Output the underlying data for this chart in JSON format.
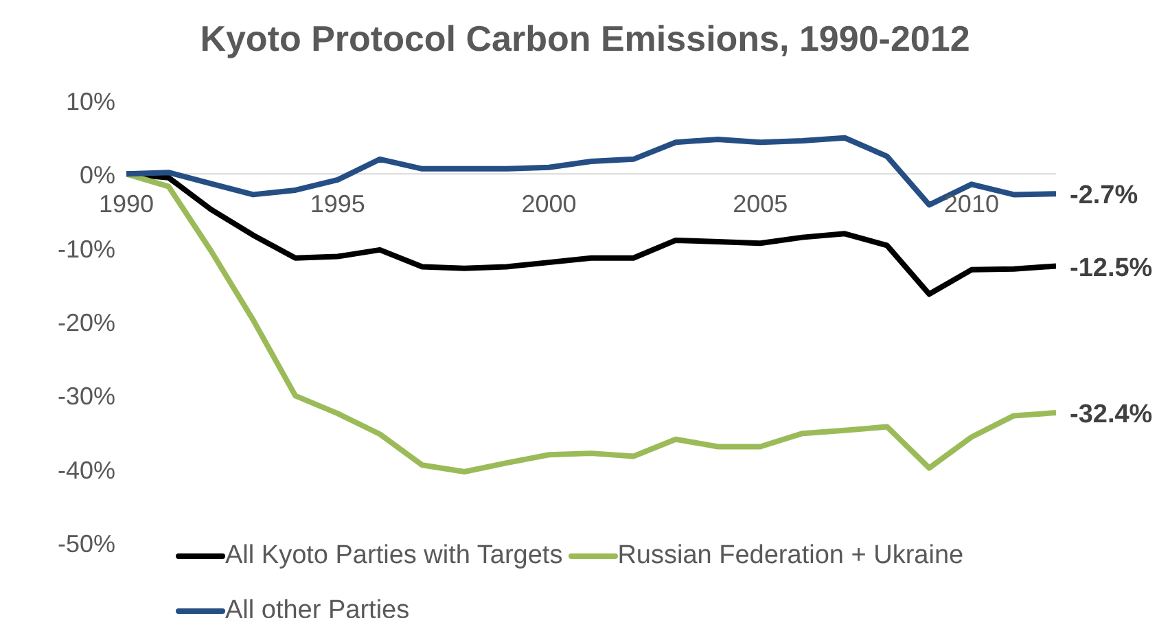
{
  "chart_data": {
    "type": "line",
    "title": "Kyoto Protocol Carbon Emissions, 1990-2012",
    "x": [
      1990,
      1991,
      1992,
      1993,
      1994,
      1995,
      1996,
      1997,
      1998,
      1999,
      2000,
      2001,
      2002,
      2003,
      2004,
      2005,
      2006,
      2007,
      2008,
      2009,
      2010,
      2011,
      2012
    ],
    "series": [
      {
        "name": "All Kyoto Parties with Targets",
        "color": "#000000",
        "values": [
          0,
          -0.5,
          -4.8,
          -8.3,
          -11.4,
          -11.2,
          -10.3,
          -12.6,
          -12.8,
          -12.6,
          -12.0,
          -11.4,
          -11.4,
          -9.0,
          -9.2,
          -9.4,
          -8.6,
          -8.1,
          -9.7,
          -16.3,
          -13.0,
          -12.9,
          -12.5
        ],
        "value_labels": [
          null,
          null,
          null,
          null,
          null,
          null,
          null,
          null,
          null,
          null,
          null,
          null,
          null,
          null,
          null,
          null,
          null,
          null,
          null,
          null,
          null,
          null,
          "-12.5%"
        ]
      },
      {
        "name": "Russian Federation + Ukraine",
        "color": "#9bbb59",
        "values": [
          0,
          -1.7,
          -10.4,
          -19.8,
          -30.1,
          -32.5,
          -35.3,
          -39.5,
          -40.4,
          -39.2,
          -38.1,
          -37.9,
          -38.3,
          -36.0,
          -37.0,
          -37.0,
          -35.2,
          -34.8,
          -34.3,
          -39.9,
          -35.7,
          -32.8,
          -32.4
        ],
        "value_labels": [
          null,
          null,
          null,
          null,
          null,
          null,
          null,
          null,
          null,
          null,
          null,
          null,
          null,
          null,
          null,
          null,
          null,
          null,
          null,
          null,
          null,
          null,
          "-32.4%"
        ]
      },
      {
        "name": "All other Parties",
        "color": "#254e84",
        "values": [
          0,
          0.2,
          -1.3,
          -2.8,
          -2.2,
          -0.8,
          2.0,
          0.7,
          0.7,
          0.7,
          0.9,
          1.7,
          2.0,
          4.3,
          4.7,
          4.3,
          4.5,
          4.9,
          2.4,
          -4.2,
          -1.4,
          -2.8,
          -2.7
        ],
        "value_labels": [
          null,
          null,
          null,
          null,
          null,
          null,
          null,
          null,
          null,
          null,
          null,
          null,
          null,
          null,
          null,
          null,
          null,
          null,
          null,
          null,
          null,
          null,
          "-2.7%"
        ]
      }
    ],
    "xlim": [
      1990,
      2012
    ],
    "xticks": [
      1990,
      1995,
      2000,
      2005,
      2010
    ],
    "ylim": [
      -50,
      10
    ],
    "yticks": [
      {
        "value": -50,
        "label": "-50%"
      },
      {
        "value": -40,
        "label": "-40%"
      },
      {
        "value": -30,
        "label": "-30%"
      },
      {
        "value": -20,
        "label": "-20%"
      },
      {
        "value": -10,
        "label": "-10%"
      },
      {
        "value": 0,
        "label": "0%"
      },
      {
        "value": 10,
        "label": "10%"
      }
    ],
    "legend": "bottom",
    "grid": false,
    "marker": "none",
    "line_style": "solid"
  }
}
